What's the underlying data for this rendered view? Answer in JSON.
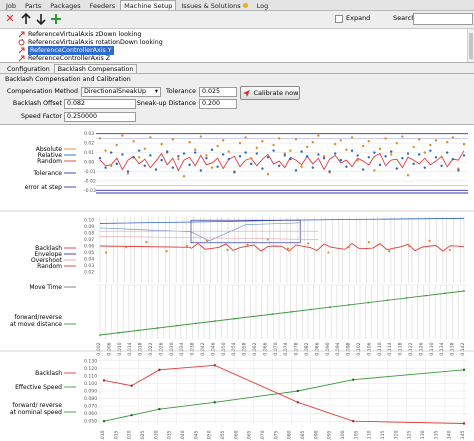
{
  "tabs": [
    "Job",
    "Parts",
    "Packages",
    "Feeders",
    "Machine Setup",
    "Issues & Solutions",
    "Log"
  ],
  "active_tab": "Machine Setup",
  "toolbar": {
    "expand_label": "Expand",
    "search_label": "Search",
    "search_value": "",
    "icons": [
      "close-icon",
      "up-arrow-icon",
      "down-arrow-icon",
      "plus-icon"
    ]
  },
  "tree": {
    "items": [
      {
        "label": "ReferenceVirtualAxis zDown looking",
        "icon": "axis-icon"
      },
      {
        "label": "ReferenceVirtualAxis rotationDown looking",
        "icon": "rotation-icon"
      },
      {
        "label": "ReferenceControllerAxis Y",
        "icon": "axis-icon",
        "selected": true
      },
      {
        "label": "ReferenceControllerAxis Z",
        "icon": "axis-icon"
      }
    ]
  },
  "sub_tabs": [
    "Configuration",
    "Backlash Compensation"
  ],
  "active_sub_tab": "Backlash Compensation",
  "panel_title": "Backlash Compensation and Calibration",
  "form": {
    "compensation_method_label": "Compensation Method",
    "compensation_method_value": "DirectionalSneakUp",
    "tolerance_label": "Tolerance",
    "tolerance_value": "0.025",
    "calibrate_label": "Calibrate now",
    "backlash_offset_label": "Backlash Offset",
    "backlash_offset_value": "0.082",
    "sneak_up_label": "Sneak-up Distance",
    "sneak_up_value": "0.200",
    "speed_factor_label": "Speed Factor",
    "speed_factor_value": "0.250000"
  },
  "chart_data": [
    {
      "type": "scatter",
      "legend": [
        "Absolute",
        "Relative",
        "Random",
        "Tolerance",
        "error at step"
      ],
      "y_ticks": [
        "0.03",
        "0.02",
        "0.01",
        "0.00",
        "-0.01",
        "-0.02",
        "-0.03"
      ],
      "ylim": [
        -0.035,
        0.035
      ],
      "series": [
        {
          "name": "Random",
          "color": "#e23b3b",
          "values": [
            0.002,
            -0.004,
            -0.003,
            0.004,
            -0.008,
            0.002,
            0.006,
            -0.002,
            0.003,
            -0.006,
            0.001,
            0.009,
            -0.003,
            0.004,
            -0.009,
            0.002,
            0.005,
            -0.004,
            0.007,
            -0.003,
            -0.001,
            0.004,
            -0.007,
            0.003,
            0.006,
            -0.005,
            0.002,
            0.004,
            -0.004,
            0.003,
            0.008,
            -0.002,
            0.001,
            -0.006,
            0.005,
            0.002,
            -0.003,
            0.006,
            -0.002,
            0.004,
            -0.008,
            0.003,
            0.007,
            -0.001,
            0.002,
            -0.005,
            0.004,
            0.001,
            -0.003,
            0.006,
            0.009,
            -0.004,
            0.002,
            0.003,
            -0.006,
            0.005,
            0.002,
            -0.002,
            0.004,
            -0.003,
            0.001,
            0.006,
            -0.005,
            0.003,
            0.002,
            0.012
          ]
        },
        {
          "name": "Absolute",
          "color": "#e08b1a",
          "values": [
            0.025,
            0.012,
            -0.004,
            0.018,
            0.028,
            -0.012,
            0.022,
            0.005,
            0.014,
            0.026,
            -0.008,
            0.019,
            0.01,
            0.024,
            0.003,
            -0.015,
            0.021,
            0.013,
            0.027,
            0.007,
            -0.006,
            0.017,
            0.023,
            0.011,
            -0.01,
            0.02,
            0.026,
            0.004,
            0.015,
            0.022,
            -0.013,
            0.018,
            0.025,
            0.009,
            0.012,
            0.024,
            -0.005,
            0.016,
            0.021,
            0.028,
            0.006,
            -0.011,
            0.019,
            0.023,
            0.013,
            0.026,
            0.002,
            0.017,
            0.022,
            -0.009,
            0.014,
            0.025,
            0.008,
            0.02,
            0.027,
            -0.014,
            0.016,
            0.024,
            0.01,
            0.018,
            0.023,
            0.005,
            0.021,
            0.026,
            -0.007,
            0.019
          ]
        },
        {
          "name": "Relative",
          "color": "#2b63c7",
          "values": [
            0.004,
            -0.006,
            0.01,
            -0.002,
            0.008,
            -0.01,
            0.005,
            0.012,
            -0.004,
            0.007,
            -0.008,
            0.002,
            0.011,
            -0.006,
            0.006,
            0.009,
            -0.003,
            0.01,
            -0.009,
            0.004,
            0.013,
            -0.005,
            0.008,
            0.003,
            -0.011,
            0.006,
            0.01,
            -0.002,
            0.009,
            -0.007,
            0.005,
            0.012,
            -0.004,
            0.007,
            0.003,
            -0.009,
            0.011,
            0.006,
            -0.006,
            0.008,
            0.004,
            -0.01,
            0.009,
            0.002,
            -0.005,
            0.012,
            0.007,
            -0.008,
            0.005,
            0.01,
            -0.003,
            0.006,
            0.011,
            -0.007,
            0.004,
            0.009,
            -0.002,
            0.008,
            -0.006,
            0.012,
            0.005,
            -0.004,
            0.01,
            0.003,
            -0.009,
            0.007
          ]
        }
      ]
    },
    {
      "type": "line",
      "legend": [
        "Backlash",
        "Envelope",
        "Overshoot",
        "Random"
      ],
      "y_ticks": [
        "0.10",
        "0.09",
        "0.08",
        "0.07",
        "0.06",
        "0.05",
        "0.04",
        "0.03",
        "0.02"
      ],
      "ylim": [
        0.015,
        0.105
      ]
    },
    {
      "type": "line",
      "legend": [
        "Move Time",
        "forward/reverse at move distance"
      ]
    },
    {
      "type": "line",
      "legend": [
        "Backlash",
        "Effective Speed",
        "forward/reverse at nominal speed"
      ],
      "y_ticks": [
        "0.130",
        "0.120",
        "0.110",
        "0.100",
        "0.090",
        "0.080",
        "0.070",
        "0.060",
        "0.050"
      ],
      "ylim": [
        0.045,
        0.135
      ],
      "series": [
        {
          "name": "Backlash",
          "color": "#e23b3b",
          "x": [
            0.01,
            0.02,
            0.03,
            0.05,
            0.08,
            0.1,
            0.14
          ],
          "values": [
            0.104,
            0.097,
            0.118,
            0.124,
            0.075,
            0.05,
            0.047
          ]
        },
        {
          "name": "Effective Speed",
          "color": "#3d9a3d",
          "x": [
            0.01,
            0.02,
            0.03,
            0.05,
            0.08,
            0.1,
            0.14
          ],
          "values": [
            0.05,
            0.058,
            0.066,
            0.075,
            0.09,
            0.105,
            0.118
          ]
        }
      ]
    }
  ]
}
